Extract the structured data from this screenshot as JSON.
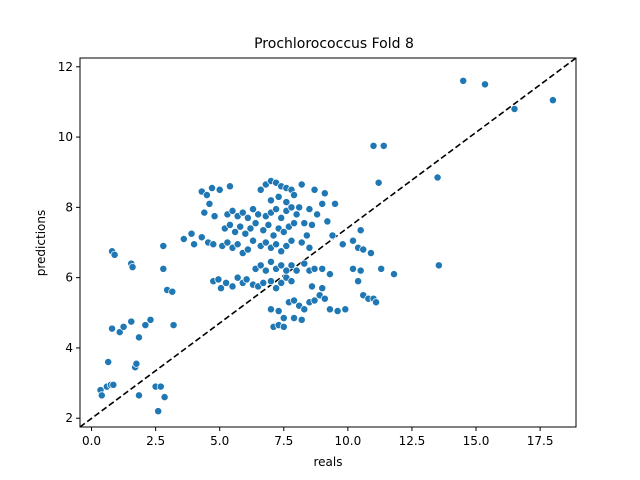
{
  "chart_data": {
    "type": "scatter",
    "title": "Prochlorococcus Fold 8",
    "xlabel": "reals",
    "ylabel": "predictions",
    "xlim": [
      -0.45,
      18.9
    ],
    "ylim": [
      1.75,
      12.25
    ],
    "xticks": [
      0.0,
      2.5,
      5.0,
      7.5,
      10.0,
      12.5,
      15.0,
      17.5
    ],
    "xtick_labels": [
      "0.0",
      "2.5",
      "5.0",
      "7.5",
      "10.0",
      "12.5",
      "15.0",
      "17.5"
    ],
    "yticks": [
      2,
      4,
      6,
      8,
      10,
      12
    ],
    "ytick_labels": [
      "2",
      "4",
      "6",
      "8",
      "10",
      "12"
    ],
    "grid": false,
    "reference_line": {
      "style": "dashed",
      "color": "#000000",
      "from": [
        -0.45,
        1.75
      ],
      "to": [
        18.9,
        12.25
      ]
    },
    "point_color": "#1f77b4",
    "points": [
      [
        0.35,
        2.8
      ],
      [
        0.4,
        2.65
      ],
      [
        0.6,
        2.9
      ],
      [
        0.75,
        2.95
      ],
      [
        0.85,
        2.95
      ],
      [
        0.65,
        3.6
      ],
      [
        0.8,
        4.55
      ],
      [
        1.1,
        4.45
      ],
      [
        1.25,
        4.6
      ],
      [
        1.55,
        4.75
      ],
      [
        1.85,
        4.3
      ],
      [
        2.1,
        4.65
      ],
      [
        2.3,
        4.8
      ],
      [
        1.7,
        3.45
      ],
      [
        1.75,
        3.55
      ],
      [
        1.85,
        2.65
      ],
      [
        2.5,
        2.9
      ],
      [
        2.7,
        2.9
      ],
      [
        2.6,
        2.2
      ],
      [
        2.85,
        2.6
      ],
      [
        3.2,
        4.65
      ],
      [
        2.95,
        5.65
      ],
      [
        3.15,
        5.6
      ],
      [
        2.8,
        6.9
      ],
      [
        2.8,
        6.25
      ],
      [
        0.8,
        6.75
      ],
      [
        0.9,
        6.65
      ],
      [
        1.55,
        6.4
      ],
      [
        1.6,
        6.3
      ],
      [
        3.6,
        7.1
      ],
      [
        3.9,
        7.25
      ],
      [
        4.0,
        6.95
      ],
      [
        4.3,
        7.15
      ],
      [
        4.55,
        7.0
      ],
      [
        4.75,
        6.95
      ],
      [
        4.3,
        8.45
      ],
      [
        4.5,
        8.35
      ],
      [
        4.7,
        8.55
      ],
      [
        4.4,
        7.85
      ],
      [
        4.6,
        8.1
      ],
      [
        4.8,
        7.75
      ],
      [
        5.0,
        8.5
      ],
      [
        4.75,
        5.9
      ],
      [
        4.95,
        5.95
      ],
      [
        5.05,
        5.7
      ],
      [
        5.25,
        5.85
      ],
      [
        5.5,
        5.75
      ],
      [
        5.7,
        6.0
      ],
      [
        5.9,
        5.85
      ],
      [
        6.05,
        5.95
      ],
      [
        6.3,
        5.8
      ],
      [
        6.5,
        5.75
      ],
      [
        6.7,
        5.85
      ],
      [
        7.0,
        5.9
      ],
      [
        7.2,
        5.7
      ],
      [
        7.4,
        5.85
      ],
      [
        7.6,
        6.0
      ],
      [
        7.8,
        5.9
      ],
      [
        5.1,
        6.9
      ],
      [
        5.3,
        7.0
      ],
      [
        5.5,
        6.85
      ],
      [
        5.7,
        6.95
      ],
      [
        5.9,
        6.7
      ],
      [
        6.1,
        6.8
      ],
      [
        6.3,
        7.05
      ],
      [
        5.2,
        7.4
      ],
      [
        5.4,
        7.5
      ],
      [
        5.6,
        7.3
      ],
      [
        5.8,
        7.45
      ],
      [
        6.0,
        7.25
      ],
      [
        6.2,
        7.4
      ],
      [
        6.4,
        7.55
      ],
      [
        5.3,
        7.8
      ],
      [
        5.5,
        7.9
      ],
      [
        5.7,
        7.75
      ],
      [
        5.9,
        7.85
      ],
      [
        6.1,
        7.7
      ],
      [
        6.3,
        7.95
      ],
      [
        6.5,
        7.8
      ],
      [
        5.4,
        8.6
      ],
      [
        6.6,
        8.5
      ],
      [
        6.8,
        8.65
      ],
      [
        7.0,
        8.75
      ],
      [
        7.2,
        8.7
      ],
      [
        7.4,
        8.6
      ],
      [
        7.6,
        8.55
      ],
      [
        7.8,
        8.5
      ],
      [
        8.2,
        8.65
      ],
      [
        6.6,
        6.9
      ],
      [
        6.8,
        7.0
      ],
      [
        7.0,
        6.85
      ],
      [
        7.2,
        6.95
      ],
      [
        7.4,
        6.75
      ],
      [
        7.6,
        6.9
      ],
      [
        7.8,
        7.05
      ],
      [
        6.7,
        7.35
      ],
      [
        6.9,
        7.5
      ],
      [
        7.1,
        7.2
      ],
      [
        7.3,
        7.4
      ],
      [
        7.5,
        7.3
      ],
      [
        7.7,
        7.45
      ],
      [
        7.9,
        7.55
      ],
      [
        6.8,
        7.75
      ],
      [
        7.0,
        7.85
      ],
      [
        7.2,
        7.95
      ],
      [
        7.4,
        7.7
      ],
      [
        7.6,
        7.9
      ],
      [
        7.8,
        8.0
      ],
      [
        8.0,
        7.8
      ],
      [
        7.0,
        8.2
      ],
      [
        7.3,
        8.3
      ],
      [
        7.6,
        8.15
      ],
      [
        7.9,
        8.35
      ],
      [
        8.1,
        8.0
      ],
      [
        8.2,
        7.0
      ],
      [
        8.4,
        7.2
      ],
      [
        8.6,
        7.5
      ],
      [
        8.8,
        7.8
      ],
      [
        9.0,
        8.1
      ],
      [
        9.2,
        7.6
      ],
      [
        9.4,
        7.2
      ],
      [
        8.5,
        7.95
      ],
      [
        8.7,
        8.5
      ],
      [
        9.1,
        8.4
      ],
      [
        9.5,
        8.1
      ],
      [
        8.3,
        7.55
      ],
      [
        8.5,
        6.85
      ],
      [
        6.4,
        6.25
      ],
      [
        6.6,
        6.35
      ],
      [
        6.8,
        6.2
      ],
      [
        7.0,
        6.45
      ],
      [
        7.2,
        6.25
      ],
      [
        7.4,
        6.35
      ],
      [
        7.6,
        6.2
      ],
      [
        7.8,
        6.35
      ],
      [
        8.0,
        6.2
      ],
      [
        8.3,
        6.4
      ],
      [
        8.5,
        6.2
      ],
      [
        8.7,
        6.25
      ],
      [
        9.0,
        6.25
      ],
      [
        9.3,
        6.1
      ],
      [
        7.0,
        5.1
      ],
      [
        7.3,
        5.05
      ],
      [
        7.5,
        4.85
      ],
      [
        7.7,
        5.3
      ],
      [
        7.9,
        5.35
      ],
      [
        8.1,
        5.2
      ],
      [
        8.3,
        5.1
      ],
      [
        7.1,
        4.6
      ],
      [
        7.3,
        4.65
      ],
      [
        7.5,
        4.6
      ],
      [
        7.9,
        4.85
      ],
      [
        8.2,
        4.8
      ],
      [
        8.5,
        5.3
      ],
      [
        8.7,
        5.35
      ],
      [
        8.9,
        5.5
      ],
      [
        9.1,
        5.4
      ],
      [
        9.3,
        5.1
      ],
      [
        8.6,
        5.75
      ],
      [
        9.0,
        5.7
      ],
      [
        9.6,
        5.05
      ],
      [
        9.9,
        5.1
      ],
      [
        9.8,
        6.95
      ],
      [
        10.2,
        7.05
      ],
      [
        10.4,
        6.85
      ],
      [
        10.5,
        7.35
      ],
      [
        10.6,
        6.8
      ],
      [
        10.2,
        6.25
      ],
      [
        10.5,
        6.2
      ],
      [
        10.4,
        5.9
      ],
      [
        10.9,
        6.7
      ],
      [
        10.6,
        5.5
      ],
      [
        10.8,
        5.4
      ],
      [
        11.0,
        5.4
      ],
      [
        11.1,
        5.3
      ],
      [
        11.3,
        6.25
      ],
      [
        11.8,
        6.1
      ],
      [
        11.0,
        9.75
      ],
      [
        11.4,
        9.75
      ],
      [
        11.2,
        8.7
      ],
      [
        13.5,
        8.85
      ],
      [
        13.55,
        6.35
      ],
      [
        14.5,
        11.6
      ],
      [
        15.35,
        11.5
      ],
      [
        16.5,
        10.8
      ],
      [
        18.0,
        11.05
      ]
    ]
  }
}
